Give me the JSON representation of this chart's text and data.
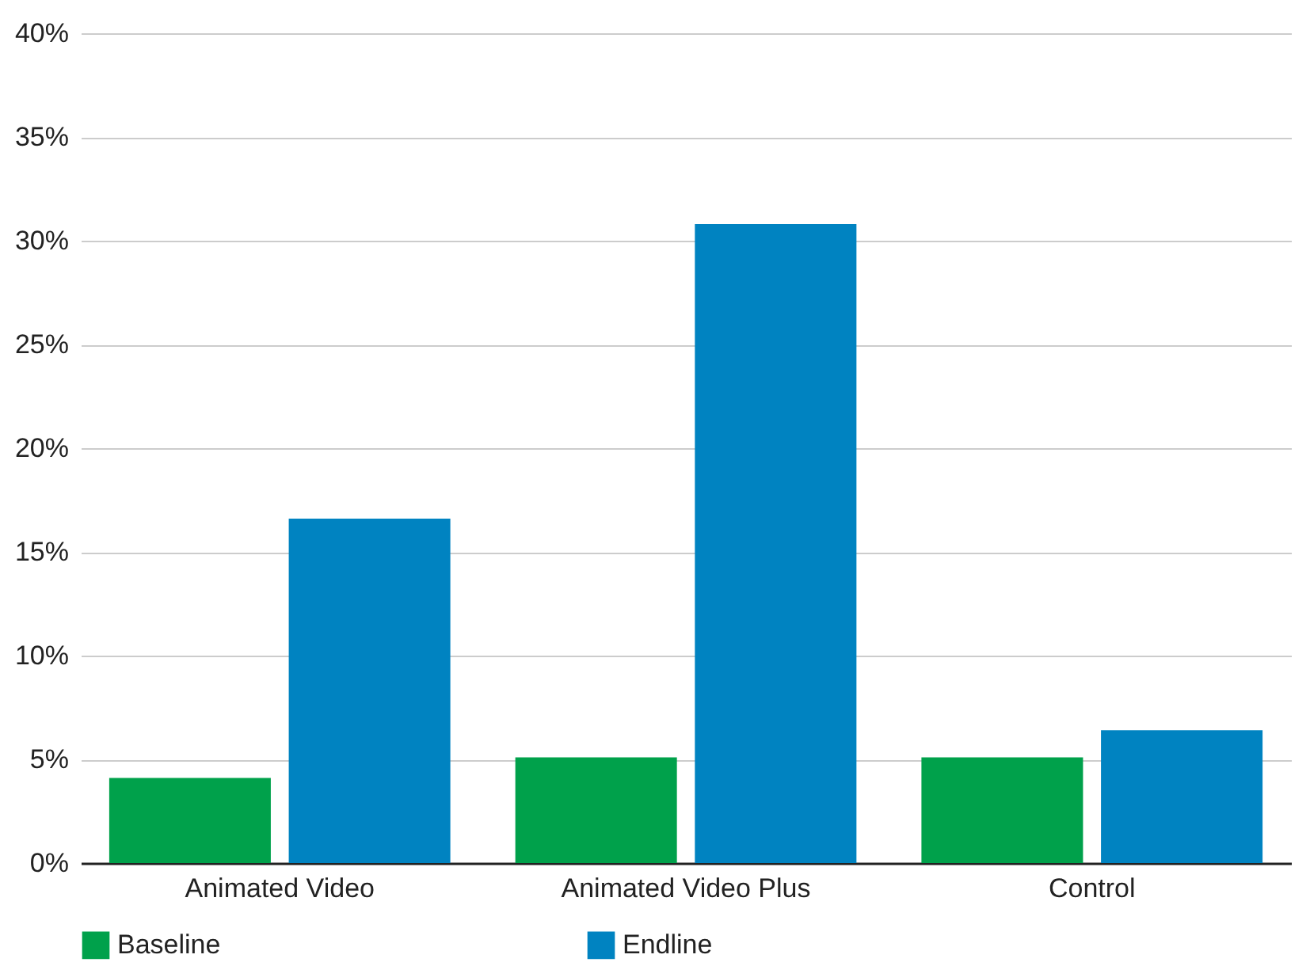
{
  "chart_data": {
    "type": "bar",
    "categories": [
      "Animated Video",
      "Animated Video Plus",
      "Control"
    ],
    "series": [
      {
        "name": "Baseline",
        "color": "#00a14b",
        "values": [
          4.1,
          5.1,
          5.1
        ]
      },
      {
        "name": "Endline",
        "color": "#0083c1",
        "values": [
          16.6,
          30.8,
          6.4
        ]
      }
    ],
    "ylim": [
      0,
      40
    ],
    "yticks": [
      {
        "value": 0,
        "label": "0%"
      },
      {
        "value": 5,
        "label": "5%"
      },
      {
        "value": 10,
        "label": "10%"
      },
      {
        "value": 15,
        "label": "15%"
      },
      {
        "value": 20,
        "label": "20%"
      },
      {
        "value": 25,
        "label": "25%"
      },
      {
        "value": 30,
        "label": "30%"
      },
      {
        "value": 35,
        "label": "35%"
      },
      {
        "value": 40,
        "label": "40%"
      }
    ],
    "grid": "y",
    "legend": "bottom"
  }
}
